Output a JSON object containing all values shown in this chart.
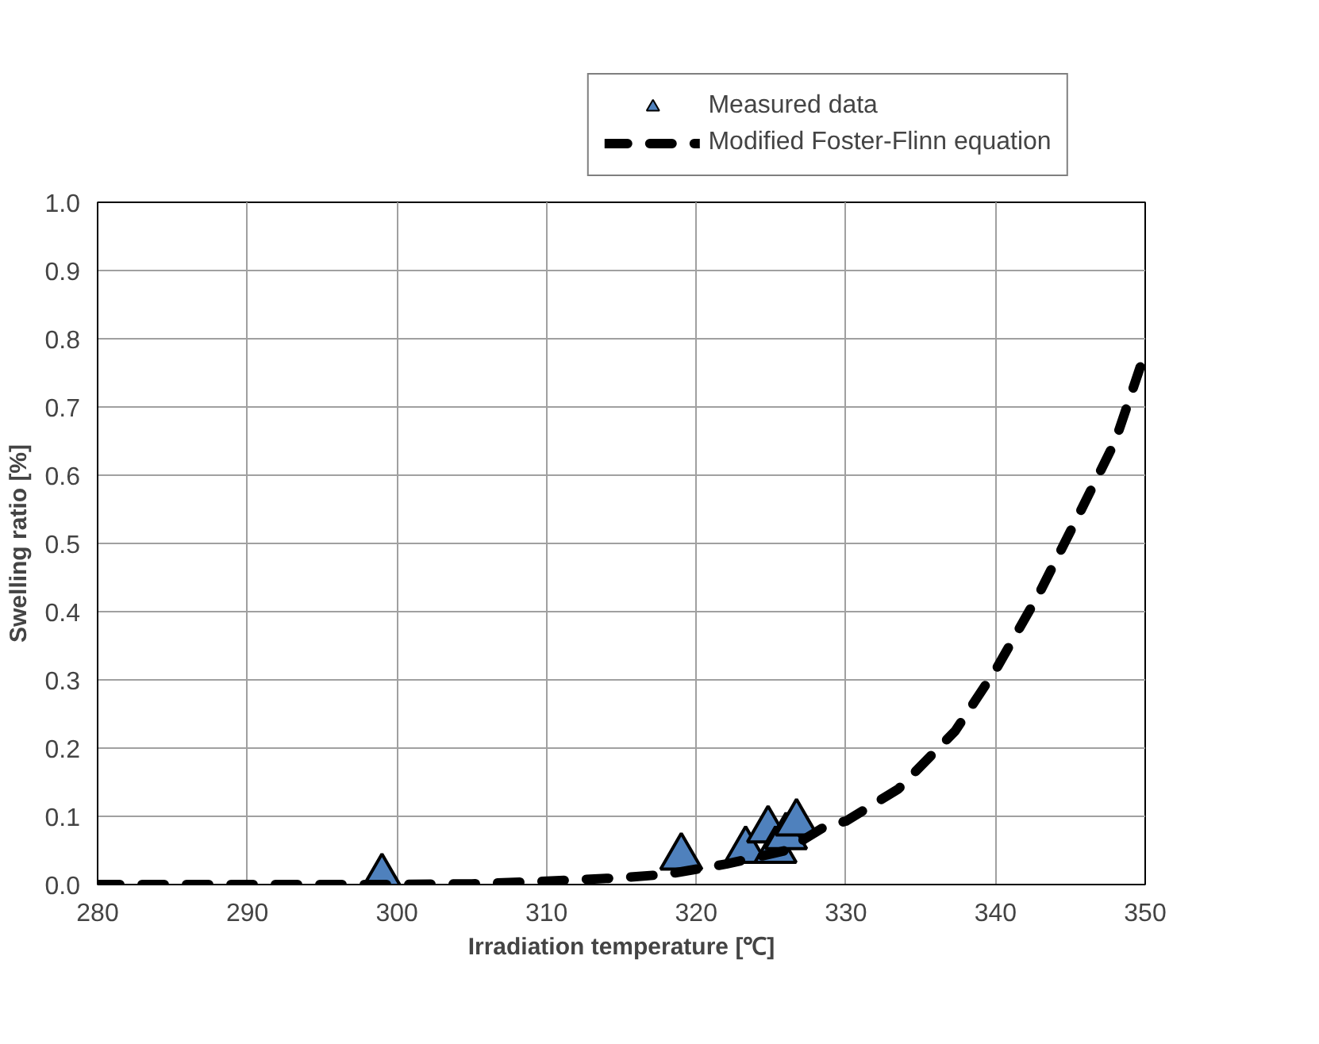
{
  "chart_data": {
    "type": "scatter",
    "xlabel": "Irradiation temperature [℃]",
    "ylabel": "Swelling ratio [%]",
    "xlim": [
      280,
      350
    ],
    "ylim": [
      0,
      1.0
    ],
    "xticks": [
      280,
      290,
      300,
      310,
      320,
      330,
      340,
      350
    ],
    "yticks": [
      {
        "value": 0,
        "label": "0.0"
      },
      {
        "value": 0.1,
        "label": "0.1"
      },
      {
        "value": 0.2,
        "label": "0.2"
      },
      {
        "value": 0.3,
        "label": "0.3"
      },
      {
        "value": 0.4,
        "label": "0.4"
      },
      {
        "value": 0.5,
        "label": "0.5"
      },
      {
        "value": 0.6,
        "label": "0.6"
      },
      {
        "value": 0.7,
        "label": "0.7"
      },
      {
        "value": 0.8,
        "label": "0.8"
      },
      {
        "value": 0.9,
        "label": "0.9"
      },
      {
        "value": 1.0,
        "label": "1.0"
      }
    ],
    "grid": true,
    "legend": "top right",
    "series": [
      {
        "name": "Measured data",
        "marker": "triangle",
        "color": "#4f81bd",
        "x": [
          299,
          319,
          323.3,
          324.8,
          325.3,
          326,
          326.7
        ],
        "values": [
          0.01,
          0.04,
          0.05,
          0.08,
          0.05,
          0.07,
          0.09
        ]
      },
      {
        "name": "Modified Foster-Flinn equation",
        "type": "line",
        "line_style": "dashed",
        "marker": "none",
        "color": "#000000",
        "x": [
          280,
          290,
          300,
          305,
          310,
          315,
          318,
          322,
          326,
          328.6,
          330,
          333.5,
          337.3,
          340.1,
          342.9,
          345.4,
          348,
          350
        ],
        "values": [
          0,
          0,
          0,
          0.001,
          0.005,
          0.01,
          0.015,
          0.03,
          0.05,
          0.085,
          0.093,
          0.14,
          0.225,
          0.318,
          0.426,
          0.535,
          0.65,
          0.78
        ]
      }
    ]
  }
}
